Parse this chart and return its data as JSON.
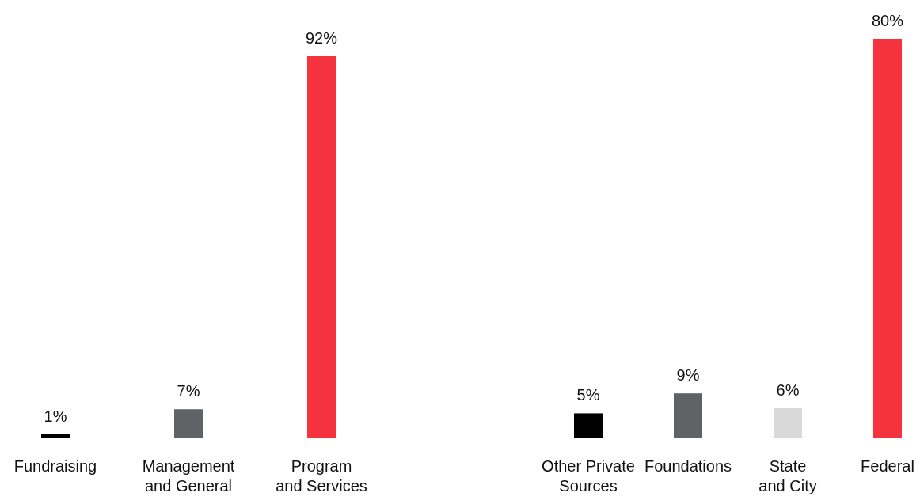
{
  "chart_data": [
    {
      "type": "bar",
      "categories": [
        "Fundraising",
        "Management\nand General",
        "Program\nand Services"
      ],
      "values": [
        1,
        7,
        92
      ],
      "colors": [
        "#000000",
        "#5f6366",
        "#f5333f"
      ],
      "value_labels": [
        "1%",
        "7%",
        "92%"
      ]
    },
    {
      "type": "bar",
      "categories": [
        "Other Private\nSources",
        "Foundations",
        "State\nand City",
        "Federal"
      ],
      "values": [
        5,
        9,
        6,
        80
      ],
      "colors": [
        "#000000",
        "#5f6366",
        "#d9d9d9",
        "#f5333f"
      ],
      "value_labels": [
        "5%",
        "9%",
        "6%",
        "80%"
      ]
    }
  ]
}
